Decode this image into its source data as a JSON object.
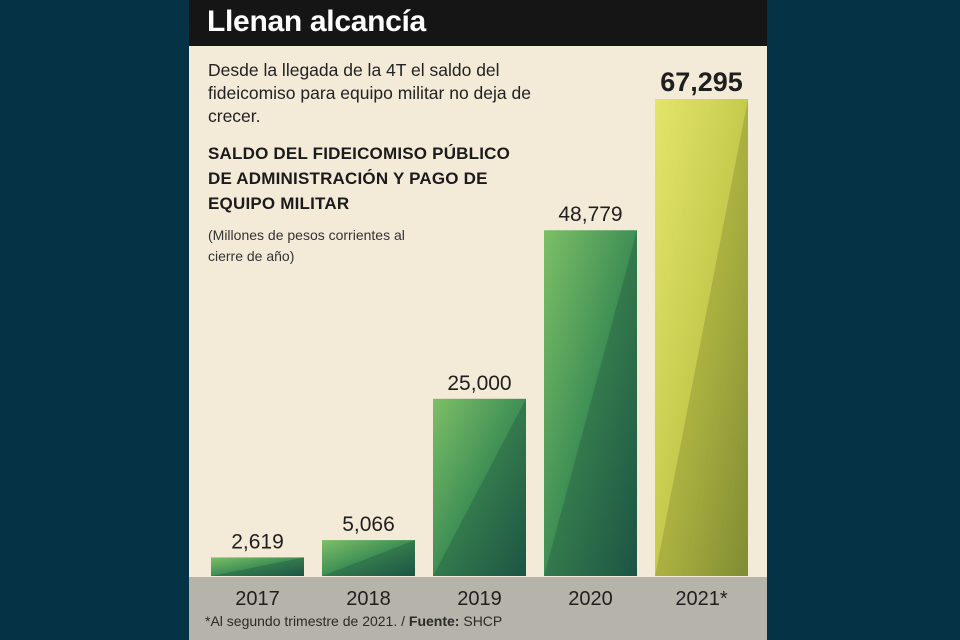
{
  "header": {
    "title": "Llenan alcancía"
  },
  "intro_text": "Desde la llegada de la 4T el saldo del fideicomiso para equipo militar no deja de crecer.",
  "chart_data": {
    "type": "bar",
    "title": "SALDO DEL FIDEICOMISO PÚBLICO DE ADMINISTRACIÓN Y PAGO DE EQUIPO MILITAR",
    "subtitle": "(Millones de pesos corrientes al cierre de año)",
    "categories": [
      "2017",
      "2018",
      "2019",
      "2020",
      "2021*"
    ],
    "values": [
      2619,
      5066,
      25000,
      48779,
      67295
    ],
    "value_labels": [
      "2,619",
      "5,066",
      "25,000",
      "48,779",
      "67,295"
    ],
    "xlabel": "",
    "ylabel": "",
    "ylim": [
      0,
      67295
    ],
    "grid": false,
    "highlight_color": "#cfd64a",
    "bar_color": "#3f8f52"
  },
  "footer": {
    "note": "*Al segundo trimestre de 2021. / ",
    "source_label": "Fuente:",
    "source": " SHCP"
  }
}
